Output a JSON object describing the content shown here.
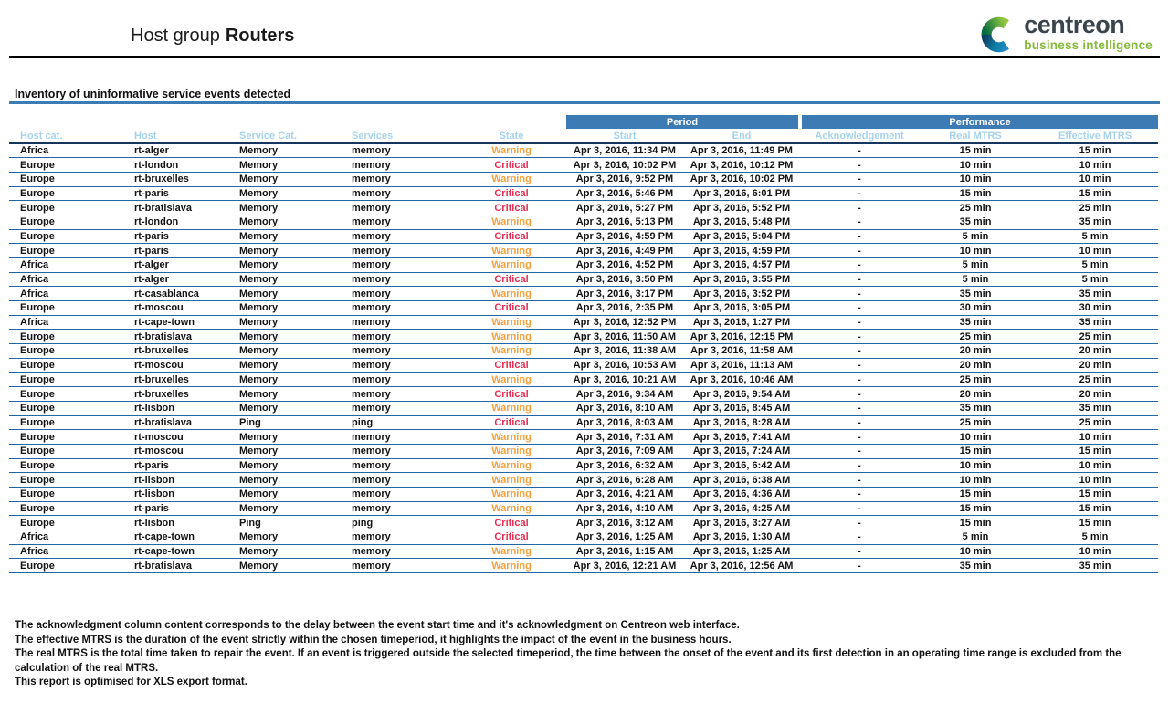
{
  "header": {
    "title_prefix": "Host group",
    "title_bold": "Routers"
  },
  "logo": {
    "word": "centreon",
    "tagline": "business intelligence",
    "word_color": "#3b444d",
    "tagline_color": "#86b93c",
    "icon_colors": {
      "green_light": "#93c83d",
      "green_dark": "#046a41",
      "navy": "#123f63",
      "blue": "#1e8ac6"
    }
  },
  "section": {
    "title": "Inventory of uninformative service events detected"
  },
  "colors": {
    "group_header_bg": "#3d7bb4",
    "subheader_text": "#a6d3ec",
    "row_separator": "#2166a5",
    "header_underline": "#17365d",
    "warning": "#f7a13d",
    "critical": "#e62e52"
  },
  "table": {
    "group_headers": {
      "period": "Period",
      "performance": "Performance"
    },
    "columns": [
      "Host cat.",
      "Host",
      "Service Cat.",
      "Services",
      "State",
      "Start",
      "End",
      "Acknowledgement",
      "Real MTRS",
      "Effective MTRS"
    ],
    "rows": [
      {
        "host_cat": "Africa",
        "host": "rt-alger",
        "service_cat": "Memory",
        "service": "memory",
        "state": "Warning",
        "start": "Apr 3, 2016, 11:34 PM",
        "end": "Apr 3, 2016, 11:49 PM",
        "ack": "-",
        "real": "15 min",
        "effective": "15 min"
      },
      {
        "host_cat": "Europe",
        "host": "rt-london",
        "service_cat": "Memory",
        "service": "memory",
        "state": "Critical",
        "start": "Apr 3, 2016, 10:02 PM",
        "end": "Apr 3, 2016, 10:12 PM",
        "ack": "-",
        "real": "10 min",
        "effective": "10 min"
      },
      {
        "host_cat": "Europe",
        "host": "rt-bruxelles",
        "service_cat": "Memory",
        "service": "memory",
        "state": "Warning",
        "start": "Apr 3, 2016, 9:52 PM",
        "end": "Apr 3, 2016, 10:02 PM",
        "ack": "-",
        "real": "10 min",
        "effective": "10 min"
      },
      {
        "host_cat": "Europe",
        "host": "rt-paris",
        "service_cat": "Memory",
        "service": "memory",
        "state": "Critical",
        "start": "Apr 3, 2016, 5:46 PM",
        "end": "Apr 3, 2016, 6:01 PM",
        "ack": "-",
        "real": "15 min",
        "effective": "15 min"
      },
      {
        "host_cat": "Europe",
        "host": "rt-bratislava",
        "service_cat": "Memory",
        "service": "memory",
        "state": "Critical",
        "start": "Apr 3, 2016, 5:27 PM",
        "end": "Apr 3, 2016, 5:52 PM",
        "ack": "-",
        "real": "25 min",
        "effective": "25 min"
      },
      {
        "host_cat": "Europe",
        "host": "rt-london",
        "service_cat": "Memory",
        "service": "memory",
        "state": "Warning",
        "start": "Apr 3, 2016, 5:13 PM",
        "end": "Apr 3, 2016, 5:48 PM",
        "ack": "-",
        "real": "35 min",
        "effective": "35 min"
      },
      {
        "host_cat": "Europe",
        "host": "rt-paris",
        "service_cat": "Memory",
        "service": "memory",
        "state": "Critical",
        "start": "Apr 3, 2016, 4:59 PM",
        "end": "Apr 3, 2016, 5:04 PM",
        "ack": "-",
        "real": "5 min",
        "effective": "5 min"
      },
      {
        "host_cat": "Europe",
        "host": "rt-paris",
        "service_cat": "Memory",
        "service": "memory",
        "state": "Warning",
        "start": "Apr 3, 2016, 4:49 PM",
        "end": "Apr 3, 2016, 4:59 PM",
        "ack": "-",
        "real": "10 min",
        "effective": "10 min"
      },
      {
        "host_cat": "Africa",
        "host": "rt-alger",
        "service_cat": "Memory",
        "service": "memory",
        "state": "Warning",
        "start": "Apr 3, 2016, 4:52 PM",
        "end": "Apr 3, 2016, 4:57 PM",
        "ack": "-",
        "real": "5 min",
        "effective": "5 min"
      },
      {
        "host_cat": "Africa",
        "host": "rt-alger",
        "service_cat": "Memory",
        "service": "memory",
        "state": "Critical",
        "start": "Apr 3, 2016, 3:50 PM",
        "end": "Apr 3, 2016, 3:55 PM",
        "ack": "-",
        "real": "5 min",
        "effective": "5 min"
      },
      {
        "host_cat": "Africa",
        "host": "rt-casablanca",
        "service_cat": "Memory",
        "service": "memory",
        "state": "Warning",
        "start": "Apr 3, 2016, 3:17 PM",
        "end": "Apr 3, 2016, 3:52 PM",
        "ack": "-",
        "real": "35 min",
        "effective": "35 min"
      },
      {
        "host_cat": "Europe",
        "host": "rt-moscou",
        "service_cat": "Memory",
        "service": "memory",
        "state": "Critical",
        "start": "Apr 3, 2016, 2:35 PM",
        "end": "Apr 3, 2016, 3:05 PM",
        "ack": "-",
        "real": "30 min",
        "effective": "30 min"
      },
      {
        "host_cat": "Africa",
        "host": "rt-cape-town",
        "service_cat": "Memory",
        "service": "memory",
        "state": "Warning",
        "start": "Apr 3, 2016, 12:52 PM",
        "end": "Apr 3, 2016, 1:27 PM",
        "ack": "-",
        "real": "35 min",
        "effective": "35 min"
      },
      {
        "host_cat": "Europe",
        "host": "rt-bratislava",
        "service_cat": "Memory",
        "service": "memory",
        "state": "Warning",
        "start": "Apr 3, 2016, 11:50 AM",
        "end": "Apr 3, 2016, 12:15 PM",
        "ack": "-",
        "real": "25 min",
        "effective": "25 min"
      },
      {
        "host_cat": "Europe",
        "host": "rt-bruxelles",
        "service_cat": "Memory",
        "service": "memory",
        "state": "Warning",
        "start": "Apr 3, 2016, 11:38 AM",
        "end": "Apr 3, 2016, 11:58 AM",
        "ack": "-",
        "real": "20 min",
        "effective": "20 min"
      },
      {
        "host_cat": "Europe",
        "host": "rt-moscou",
        "service_cat": "Memory",
        "service": "memory",
        "state": "Critical",
        "start": "Apr 3, 2016, 10:53 AM",
        "end": "Apr 3, 2016, 11:13 AM",
        "ack": "-",
        "real": "20 min",
        "effective": "20 min"
      },
      {
        "host_cat": "Europe",
        "host": "rt-bruxelles",
        "service_cat": "Memory",
        "service": "memory",
        "state": "Warning",
        "start": "Apr 3, 2016, 10:21 AM",
        "end": "Apr 3, 2016, 10:46 AM",
        "ack": "-",
        "real": "25 min",
        "effective": "25 min"
      },
      {
        "host_cat": "Europe",
        "host": "rt-bruxelles",
        "service_cat": "Memory",
        "service": "memory",
        "state": "Critical",
        "start": "Apr 3, 2016, 9:34 AM",
        "end": "Apr 3, 2016, 9:54 AM",
        "ack": "-",
        "real": "20 min",
        "effective": "20 min"
      },
      {
        "host_cat": "Europe",
        "host": "rt-lisbon",
        "service_cat": "Memory",
        "service": "memory",
        "state": "Warning",
        "start": "Apr 3, 2016, 8:10 AM",
        "end": "Apr 3, 2016, 8:45 AM",
        "ack": "-",
        "real": "35 min",
        "effective": "35 min"
      },
      {
        "host_cat": "Europe",
        "host": "rt-bratislava",
        "service_cat": "Ping",
        "service": "ping",
        "state": "Critical",
        "start": "Apr 3, 2016, 8:03 AM",
        "end": "Apr 3, 2016, 8:28 AM",
        "ack": "-",
        "real": "25 min",
        "effective": "25 min"
      },
      {
        "host_cat": "Europe",
        "host": "rt-moscou",
        "service_cat": "Memory",
        "service": "memory",
        "state": "Warning",
        "start": "Apr 3, 2016, 7:31 AM",
        "end": "Apr 3, 2016, 7:41 AM",
        "ack": "-",
        "real": "10 min",
        "effective": "10 min"
      },
      {
        "host_cat": "Europe",
        "host": "rt-moscou",
        "service_cat": "Memory",
        "service": "memory",
        "state": "Warning",
        "start": "Apr 3, 2016, 7:09 AM",
        "end": "Apr 3, 2016, 7:24 AM",
        "ack": "-",
        "real": "15 min",
        "effective": "15 min"
      },
      {
        "host_cat": "Europe",
        "host": "rt-paris",
        "service_cat": "Memory",
        "service": "memory",
        "state": "Warning",
        "start": "Apr 3, 2016, 6:32 AM",
        "end": "Apr 3, 2016, 6:42 AM",
        "ack": "-",
        "real": "10 min",
        "effective": "10 min"
      },
      {
        "host_cat": "Europe",
        "host": "rt-lisbon",
        "service_cat": "Memory",
        "service": "memory",
        "state": "Warning",
        "start": "Apr 3, 2016, 6:28 AM",
        "end": "Apr 3, 2016, 6:38 AM",
        "ack": "-",
        "real": "10 min",
        "effective": "10 min"
      },
      {
        "host_cat": "Europe",
        "host": "rt-lisbon",
        "service_cat": "Memory",
        "service": "memory",
        "state": "Warning",
        "start": "Apr 3, 2016, 4:21 AM",
        "end": "Apr 3, 2016, 4:36 AM",
        "ack": "-",
        "real": "15 min",
        "effective": "15 min"
      },
      {
        "host_cat": "Europe",
        "host": "rt-paris",
        "service_cat": "Memory",
        "service": "memory",
        "state": "Warning",
        "start": "Apr 3, 2016, 4:10 AM",
        "end": "Apr 3, 2016, 4:25 AM",
        "ack": "-",
        "real": "15 min",
        "effective": "15 min"
      },
      {
        "host_cat": "Europe",
        "host": "rt-lisbon",
        "service_cat": "Ping",
        "service": "ping",
        "state": "Critical",
        "start": "Apr 3, 2016, 3:12 AM",
        "end": "Apr 3, 2016, 3:27 AM",
        "ack": "-",
        "real": "15 min",
        "effective": "15 min"
      },
      {
        "host_cat": "Africa",
        "host": "rt-cape-town",
        "service_cat": "Memory",
        "service": "memory",
        "state": "Critical",
        "start": "Apr 3, 2016, 1:25 AM",
        "end": "Apr 3, 2016, 1:30 AM",
        "ack": "-",
        "real": "5 min",
        "effective": "5 min"
      },
      {
        "host_cat": "Africa",
        "host": "rt-cape-town",
        "service_cat": "Memory",
        "service": "memory",
        "state": "Warning",
        "start": "Apr 3, 2016, 1:15 AM",
        "end": "Apr 3, 2016, 1:25 AM",
        "ack": "-",
        "real": "10 min",
        "effective": "10 min"
      },
      {
        "host_cat": "Europe",
        "host": "rt-bratislava",
        "service_cat": "Memory",
        "service": "memory",
        "state": "Warning",
        "start": "Apr 3, 2016, 12:21 AM",
        "end": "Apr 3, 2016, 12:56 AM",
        "ack": "-",
        "real": "35 min",
        "effective": "35 min"
      }
    ]
  },
  "footer": {
    "lines": [
      "The acknowledgment column content corresponds to the delay between the event start time and it's acknowledgment on Centreon web interface.",
      "The effective MTRS is the duration of the event strictly within the chosen timeperiod, it highlights the impact of the event in the business hours.",
      "The real MTRS is the total time taken to repair the event. If an event is triggered outside the selected timeperiod, the time between the onset of the event and its first detection in an operating time range is excluded from the calculation of the real MTRS.",
      "This report is optimised for XLS export format."
    ]
  }
}
